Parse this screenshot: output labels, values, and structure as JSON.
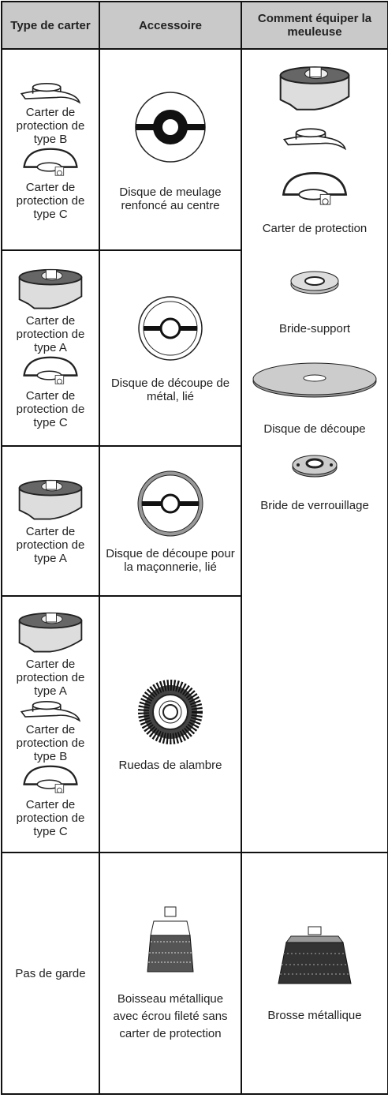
{
  "header": [
    "Type de carter",
    "Accessoire",
    "Comment équiper la meuleuse"
  ],
  "rows": [
    {
      "guards": [
        "Carter de protection de type B",
        "Carter de protection de type C"
      ],
      "accessory": "Disque de meulage renfoncé au centre"
    },
    {
      "guards": [
        "Carter de protection de type A",
        "Carter de protection de type C"
      ],
      "accessory": "Disque de découpe de métal, lié"
    },
    {
      "guards": [
        "Carter de protection de type A"
      ],
      "accessory": "Disque de découpe pour la maçonnerie, lié"
    },
    {
      "guards": [
        "Carter de protection de type A",
        "Carter de protection de type B",
        "Carter de protection de type C"
      ],
      "accessory": "Ruedas de alambre"
    },
    {
      "guards": [
        "Pas de garde"
      ],
      "accessory": "Boisseau métallique avec écrou fileté sans carter de protection",
      "equip": "Brosse métallique"
    }
  ],
  "equip_steps": [
    "Carter de protection",
    "Bride-support",
    "Disque de découpe",
    "Bride de verrouillage"
  ]
}
